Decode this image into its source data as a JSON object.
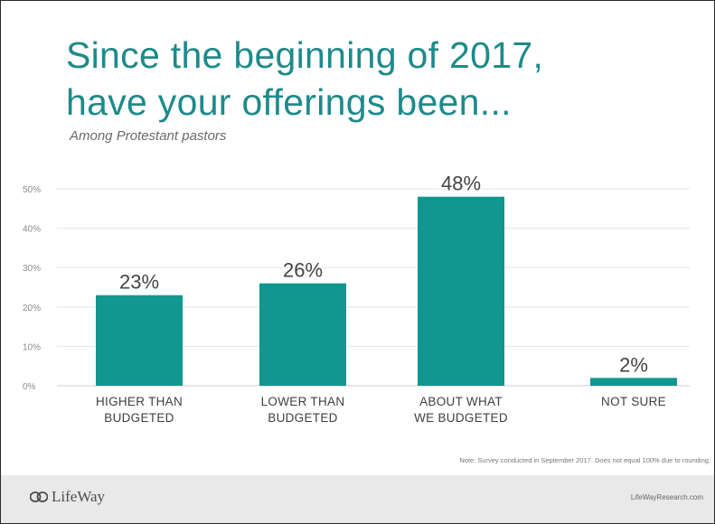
{
  "title": "Since the beginning of 2017,\nhave your offerings been...",
  "subtitle": "Among Protestant pastors",
  "note": "Note: Survey conducted in September 2017. Does not equal 100% due to rounding.",
  "footer": {
    "logo_text": "LifeWay",
    "logo_icon": "lifeway-logo-icon",
    "site": "LifeWayResearch.com"
  },
  "colors": {
    "title": "#1e8a8a",
    "bar": "#119790",
    "footer_bg": "#e9e9e9"
  },
  "chart_data": {
    "type": "bar",
    "title": "Since the beginning of 2017, have your offerings been...",
    "subtitle": "Among Protestant pastors",
    "categories": [
      [
        "HIGHER THAN",
        "BUDGETED"
      ],
      [
        "LOWER THAN",
        "BUDGETED"
      ],
      [
        "ABOUT WHAT",
        "WE BUDGETED"
      ],
      [
        "NOT SURE"
      ]
    ],
    "values": [
      23,
      26,
      48,
      2
    ],
    "data_labels": [
      "23%",
      "26%",
      "48%",
      "2%"
    ],
    "y_ticks": [
      0,
      10,
      20,
      30,
      40,
      50
    ],
    "y_tick_labels": [
      "0%",
      "10%",
      "20%",
      "30%",
      "40%",
      "50%"
    ],
    "ylim": [
      0,
      50
    ],
    "grid": true,
    "legend": "none"
  }
}
